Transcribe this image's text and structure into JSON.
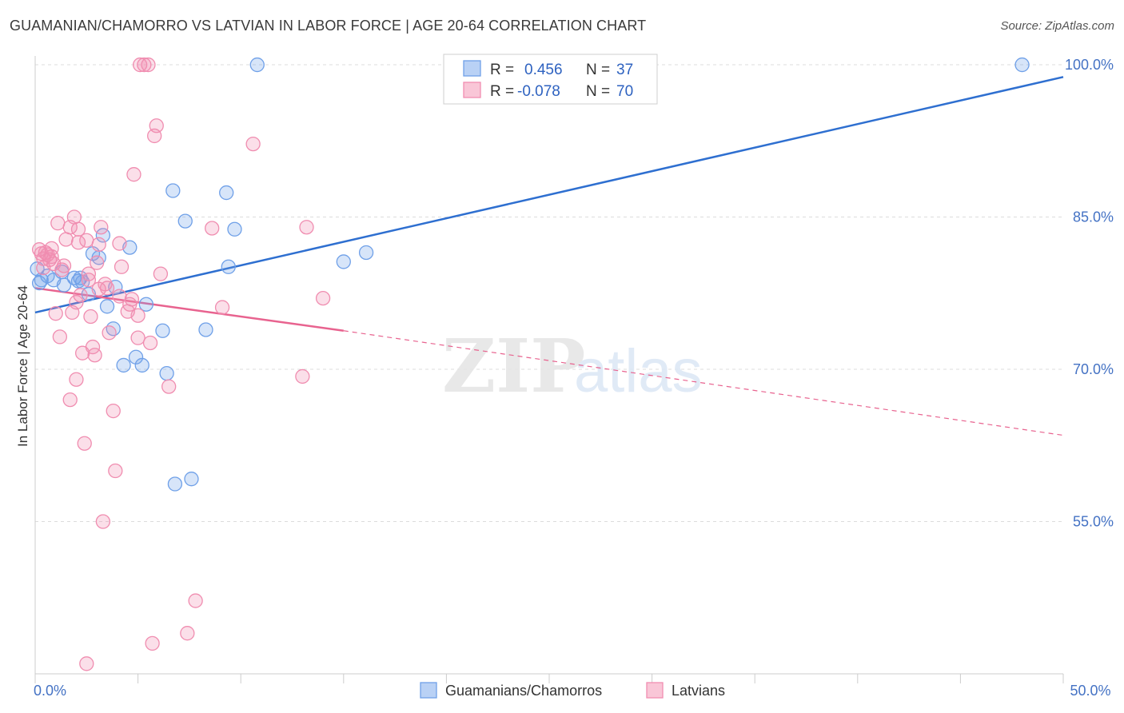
{
  "title": "GUAMANIAN/CHAMORRO VS LATVIAN IN LABOR FORCE | AGE 20-64 CORRELATION CHART",
  "source": "Source: ZipAtlas.com",
  "watermark": {
    "zip": "ZIP",
    "atlas": "atlas"
  },
  "chart_data": {
    "type": "scatter",
    "ylabel": "In Labor Force | Age 20-64",
    "xlim": [
      0,
      50
    ],
    "ylim": [
      40,
      101.5
    ],
    "x_tick_labels": [
      {
        "value": 0,
        "label": "0.0%"
      },
      {
        "value": 50,
        "label": "50.0%"
      }
    ],
    "y_tick_labels": [
      {
        "value": 55,
        "label": "55.0%"
      },
      {
        "value": 70,
        "label": "70.0%"
      },
      {
        "value": 85,
        "label": "85.0%"
      },
      {
        "value": 100,
        "label": "100.0%"
      }
    ],
    "x_minor_ticks": [
      0,
      5,
      10,
      15,
      20,
      25,
      30,
      35,
      40,
      45,
      50
    ],
    "grid": true,
    "legend": {
      "placement": "top-center",
      "rows": [
        {
          "r_label": "R =",
          "r_value": "0.456",
          "n_label": "N =",
          "n_value": "37",
          "color": "#6fa0e8"
        },
        {
          "r_label": "R =",
          "r_value": "-0.078",
          "n_label": "N =",
          "n_value": "70",
          "color": "#f08db0"
        }
      ]
    },
    "series": [
      {
        "name": "Guamanians/Chamorros",
        "color": "#6fa0e8",
        "line_color": "#2e6fd0",
        "trend": {
          "x0": 0,
          "y0": 75.6,
          "x1": 50,
          "y1": 98.8
        },
        "points": [
          [
            0.2,
            78.5
          ],
          [
            0.6,
            79.2
          ],
          [
            0.9,
            78.8
          ],
          [
            1.3,
            79.6
          ],
          [
            1.4,
            78.3
          ],
          [
            1.9,
            79.0
          ],
          [
            2.1,
            78.7
          ],
          [
            2.2,
            79.0
          ],
          [
            2.3,
            78.6
          ],
          [
            2.6,
            77.4
          ],
          [
            2.8,
            81.4
          ],
          [
            3.1,
            81.0
          ],
          [
            3.3,
            83.2
          ],
          [
            3.5,
            76.2
          ],
          [
            3.8,
            74.0
          ],
          [
            3.9,
            78.1
          ],
          [
            4.3,
            70.4
          ],
          [
            4.6,
            82.0
          ],
          [
            4.9,
            71.2
          ],
          [
            5.2,
            70.4
          ],
          [
            5.4,
            76.4
          ],
          [
            6.2,
            73.8
          ],
          [
            6.4,
            69.6
          ],
          [
            6.7,
            87.6
          ],
          [
            6.8,
            58.7
          ],
          [
            7.3,
            84.6
          ],
          [
            7.6,
            59.2
          ],
          [
            8.3,
            73.9
          ],
          [
            9.3,
            87.4
          ],
          [
            9.4,
            80.1
          ],
          [
            9.7,
            83.8
          ],
          [
            10.8,
            100.0
          ],
          [
            15.0,
            80.6
          ],
          [
            16.1,
            81.5
          ],
          [
            48.0,
            100.0
          ],
          [
            0.1,
            79.9
          ],
          [
            0.3,
            78.8
          ]
        ]
      },
      {
        "name": "Latvians",
        "color": "#f08db0",
        "line_color": "#e8638f",
        "trend": {
          "x0": 0,
          "y0": 78.0,
          "x1": 15.0,
          "y1": 73.8
        },
        "trend_dashed": {
          "x0": 15.0,
          "y0": 73.8,
          "x1": 50,
          "y1": 63.5
        },
        "points": [
          [
            0.2,
            81.8
          ],
          [
            0.3,
            81.4
          ],
          [
            0.4,
            80.9
          ],
          [
            0.4,
            80.0
          ],
          [
            0.5,
            81.5
          ],
          [
            0.6,
            81.3
          ],
          [
            0.7,
            80.8
          ],
          [
            0.8,
            81.1
          ],
          [
            0.8,
            81.9
          ],
          [
            0.9,
            80.4
          ],
          [
            1.0,
            75.5
          ],
          [
            1.1,
            84.4
          ],
          [
            1.2,
            73.2
          ],
          [
            1.3,
            79.8
          ],
          [
            1.5,
            82.8
          ],
          [
            1.7,
            67.0
          ],
          [
            1.7,
            84.0
          ],
          [
            1.8,
            75.6
          ],
          [
            1.9,
            85.0
          ],
          [
            2.0,
            69.0
          ],
          [
            2.0,
            76.6
          ],
          [
            2.1,
            83.8
          ],
          [
            2.1,
            82.5
          ],
          [
            2.2,
            77.3
          ],
          [
            2.3,
            71.6
          ],
          [
            2.4,
            62.7
          ],
          [
            2.5,
            82.7
          ],
          [
            2.6,
            79.4
          ],
          [
            2.6,
            78.8
          ],
          [
            2.7,
            75.2
          ],
          [
            2.8,
            72.2
          ],
          [
            2.9,
            71.4
          ],
          [
            3.0,
            80.5
          ],
          [
            3.1,
            82.3
          ],
          [
            3.1,
            77.9
          ],
          [
            3.2,
            84.0
          ],
          [
            3.3,
            55.0
          ],
          [
            3.4,
            78.4
          ],
          [
            3.6,
            73.6
          ],
          [
            3.8,
            65.9
          ],
          [
            3.9,
            60.0
          ],
          [
            4.1,
            77.2
          ],
          [
            4.2,
            80.1
          ],
          [
            4.5,
            75.7
          ],
          [
            4.6,
            76.4
          ],
          [
            4.7,
            76.9
          ],
          [
            4.8,
            89.2
          ],
          [
            5.0,
            75.3
          ],
          [
            5.0,
            73.1
          ],
          [
            5.3,
            100.0
          ],
          [
            5.5,
            100.0
          ],
          [
            5.6,
            72.6
          ],
          [
            5.8,
            93.0
          ],
          [
            5.9,
            94.0
          ],
          [
            6.1,
            79.4
          ],
          [
            6.5,
            68.3
          ],
          [
            7.4,
            44.0
          ],
          [
            7.8,
            47.2
          ],
          [
            8.6,
            83.9
          ],
          [
            9.1,
            76.1
          ],
          [
            10.6,
            92.2
          ],
          [
            13.0,
            69.3
          ],
          [
            13.2,
            84.0
          ],
          [
            14.0,
            77.0
          ],
          [
            5.7,
            43.0
          ],
          [
            4.1,
            82.4
          ],
          [
            3.5,
            78.0
          ],
          [
            5.1,
            100.0
          ],
          [
            2.5,
            41.0
          ],
          [
            1.4,
            80.2
          ]
        ]
      }
    ]
  }
}
